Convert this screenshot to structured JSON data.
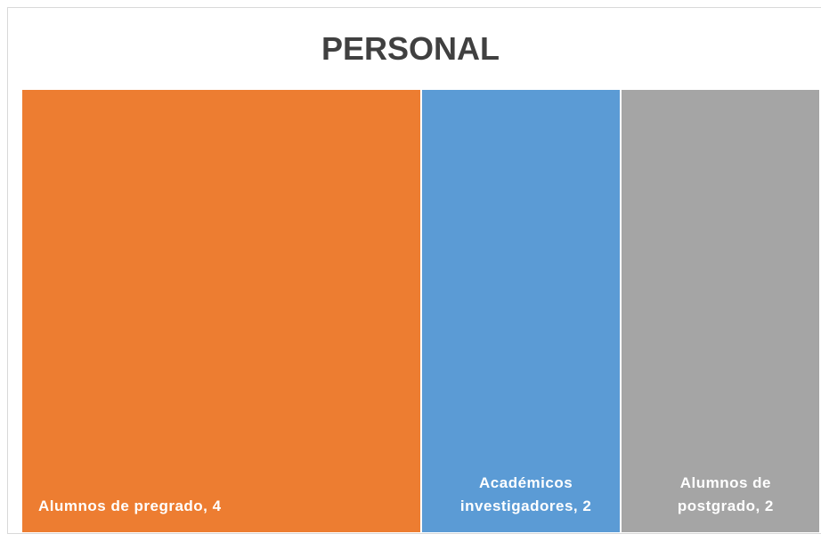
{
  "chart_data": {
    "type": "treemap",
    "title": "PERSONAL",
    "values": [
      4,
      2,
      2
    ],
    "value_labels": [
      "Alumnos de pregrado, 4",
      "Académicos investigadores, 2",
      "Alumnos de postgrado, 2"
    ],
    "colors": [
      "#ed7d31",
      "#5b9bd5",
      "#a5a5a5"
    ]
  }
}
